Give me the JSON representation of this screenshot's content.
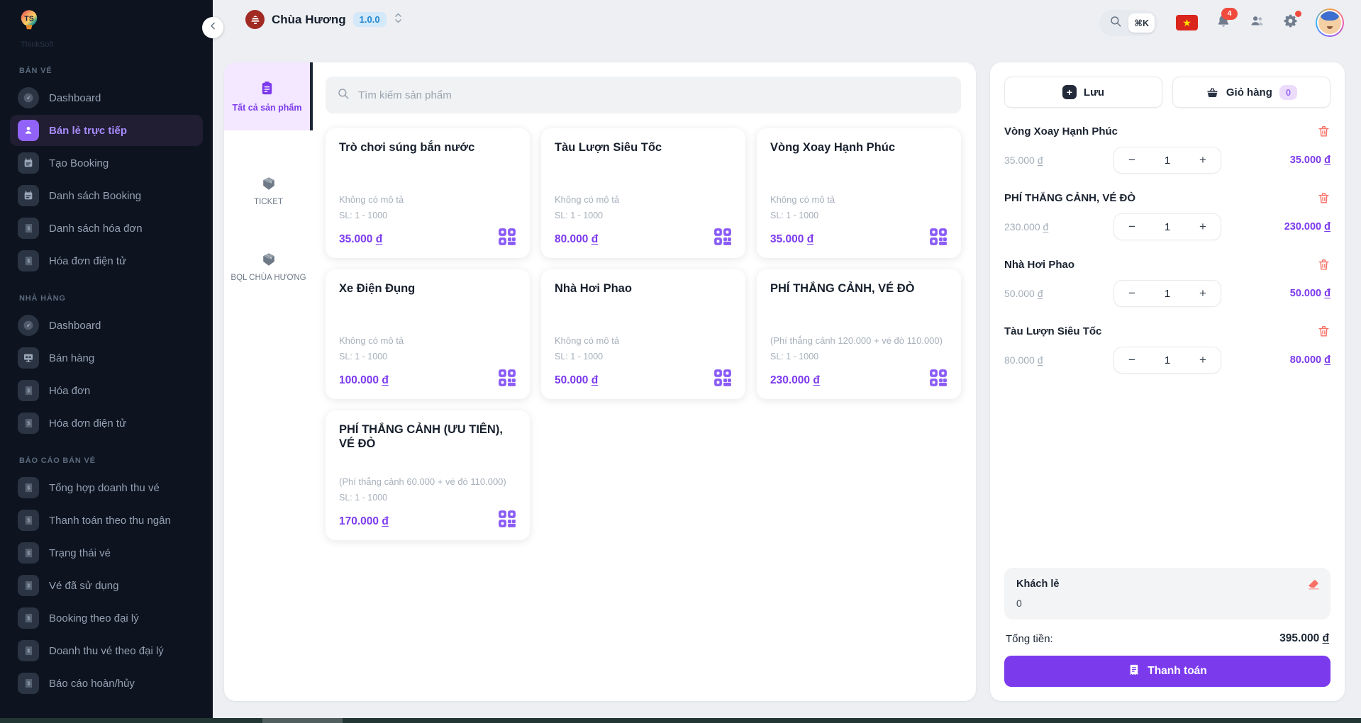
{
  "app": {
    "brand": "ThinkSoft"
  },
  "header": {
    "site_title": "Chùa Hương",
    "version_badge": "1.0.0",
    "search_shortcut": "⌘K",
    "notifications_count": "4"
  },
  "icons": {
    "flag_star": "★",
    "plus_glyph": "+",
    "minus_glyph": "−"
  },
  "sidebar": {
    "sections": [
      {
        "heading": "BÁN VÉ",
        "items": [
          {
            "label": "Dashboard",
            "icon": "dashboard"
          },
          {
            "label": "Bán lẻ trực tiếp",
            "icon": "person",
            "active": true
          },
          {
            "label": "Tạo Booking",
            "icon": "calendar"
          },
          {
            "label": "Danh sách Booking",
            "icon": "calendar"
          },
          {
            "label": "Danh sách hóa đơn",
            "icon": "receipt"
          },
          {
            "label": "Hóa đơn điện tử",
            "icon": "receipt"
          }
        ]
      },
      {
        "heading": "NHÀ HÀNG",
        "items": [
          {
            "label": "Dashboard",
            "icon": "dashboard"
          },
          {
            "label": "Bán hàng",
            "icon": "pos"
          },
          {
            "label": "Hóa đơn",
            "icon": "receipt"
          },
          {
            "label": "Hóa đơn điện tử",
            "icon": "receipt"
          }
        ]
      },
      {
        "heading": "BÁO CÁO BÁN VÉ",
        "items": [
          {
            "label": "Tổng hợp doanh thu vé",
            "icon": "receipt"
          },
          {
            "label": "Thanh toán theo thu ngân",
            "icon": "receipt"
          },
          {
            "label": "Trạng thái vé",
            "icon": "receipt"
          },
          {
            "label": "Vé đã sử dụng",
            "icon": "receipt"
          },
          {
            "label": "Booking theo đại lý",
            "icon": "receipt"
          },
          {
            "label": "Doanh thu vé theo đại lý",
            "icon": "receipt"
          },
          {
            "label": "Báo cáo hoàn/hủy",
            "icon": "receipt"
          }
        ]
      }
    ]
  },
  "catalog": {
    "categories": [
      {
        "label": "Tất cả sản phẩm",
        "icon": "clipboard",
        "active": true
      },
      {
        "label": "TICKET",
        "icon": "package"
      },
      {
        "label": "BQL CHÙA HƯƠNG",
        "icon": "package"
      }
    ],
    "search_placeholder": "Tìm kiếm sản phẩm",
    "products": [
      {
        "name": "Trò chơi súng bắn nước",
        "desc": "Không có mô tả",
        "quantity_range": "SL: 1 - 1000",
        "price": "35.000",
        "currency": "đ"
      },
      {
        "name": "Tàu Lượn Siêu Tốc",
        "desc": "Không có mô tả",
        "quantity_range": "SL: 1 - 1000",
        "price": "80.000",
        "currency": "đ"
      },
      {
        "name": "Vòng Xoay Hạnh Phúc",
        "desc": "Không có mô tả",
        "quantity_range": "SL: 1 - 1000",
        "price": "35.000",
        "currency": "đ"
      },
      {
        "name": "Xe Điện Đụng",
        "desc": "Không có mô tả",
        "quantity_range": "SL: 1 - 1000",
        "price": "100.000",
        "currency": "đ"
      },
      {
        "name": "Nhà Hơi Phao",
        "desc": "Không có mô tả",
        "quantity_range": "SL: 1 - 1000",
        "price": "50.000",
        "currency": "đ"
      },
      {
        "name": "PHÍ THẮNG CẢNH, VÉ ĐÒ",
        "desc": "(Phí thắng cảnh 120.000 + vé đò 110.000)",
        "quantity_range": "SL: 1 - 1000",
        "price": "230.000",
        "currency": "đ"
      },
      {
        "name": "PHÍ THẮNG CẢNH (ƯU TIÊN), VÉ ĐÒ",
        "desc": "(Phí thắng cảnh 60.000 + vé đò 110.000)",
        "quantity_range": "SL: 1 - 1000",
        "price": "170.000",
        "currency": "đ"
      }
    ]
  },
  "cart": {
    "save_button": "Lưu",
    "cart_button": "Giỏ hàng",
    "cart_count": "0",
    "items": [
      {
        "name": "Vòng Xoay Hạnh Phúc",
        "unit_price": "35.000",
        "qty": "1",
        "line_total": "35.000",
        "currency": "đ"
      },
      {
        "name": "PHÍ THẮNG CẢNH, VÉ ĐÒ",
        "unit_price": "230.000",
        "qty": "1",
        "line_total": "230.000",
        "currency": "đ"
      },
      {
        "name": "Nhà Hơi Phao",
        "unit_price": "50.000",
        "qty": "1",
        "line_total": "50.000",
        "currency": "đ"
      },
      {
        "name": "Tàu Lượn Siêu Tốc",
        "unit_price": "80.000",
        "qty": "1",
        "line_total": "80.000",
        "currency": "đ"
      }
    ],
    "customer_name": "Khách lẻ",
    "customer_value": "0",
    "total_label": "Tổng tiền:",
    "total_amount": "395.000",
    "total_currency": "đ",
    "checkout_button": "Thanh toán"
  },
  "colors": {
    "accent": "#7c3aed",
    "danger": "#f97066",
    "flag_red": "#da251d",
    "flag_star": "#ffdf00"
  }
}
